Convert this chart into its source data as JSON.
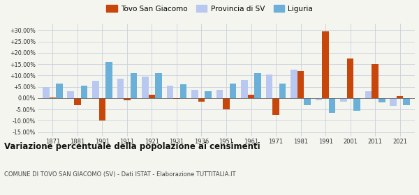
{
  "years": [
    1871,
    1881,
    1901,
    1911,
    1921,
    1931,
    1936,
    1951,
    1961,
    1971,
    1981,
    1991,
    2001,
    2011,
    2021
  ],
  "tovo": [
    0.2,
    -3.0,
    -10.0,
    -1.0,
    1.5,
    -0.5,
    -1.5,
    -5.0,
    1.5,
    -7.5,
    12.0,
    29.5,
    17.5,
    15.0,
    1.0
  ],
  "provincia": [
    5.0,
    3.0,
    7.5,
    8.5,
    9.5,
    5.5,
    3.5,
    3.5,
    8.0,
    10.5,
    12.5,
    -1.0,
    -1.5,
    3.0,
    -3.5
  ],
  "liguria": [
    6.5,
    5.5,
    16.0,
    11.0,
    11.0,
    6.0,
    3.0,
    6.5,
    11.0,
    6.5,
    -3.0,
    -6.5,
    -5.5,
    -2.0,
    -3.0
  ],
  "color_tovo": "#c8460a",
  "color_provincia": "#b8c8f0",
  "color_liguria": "#6ab0d8",
  "title": "Variazione percentuale della popolazione ai censimenti",
  "subtitle": "COMUNE DI TOVO SAN GIACOMO (SV) - Dati ISTAT - Elaborazione TUTTITALIA.IT",
  "legend_labels": [
    "Tovo San Giacomo",
    "Provincia di SV",
    "Liguria"
  ],
  "ylim": [
    -17,
    33
  ],
  "yticks": [
    -15,
    -10,
    -5,
    0,
    5,
    10,
    15,
    20,
    25,
    30
  ],
  "background_color": "#f5f5f0",
  "grid_color": "#c8d0dc"
}
